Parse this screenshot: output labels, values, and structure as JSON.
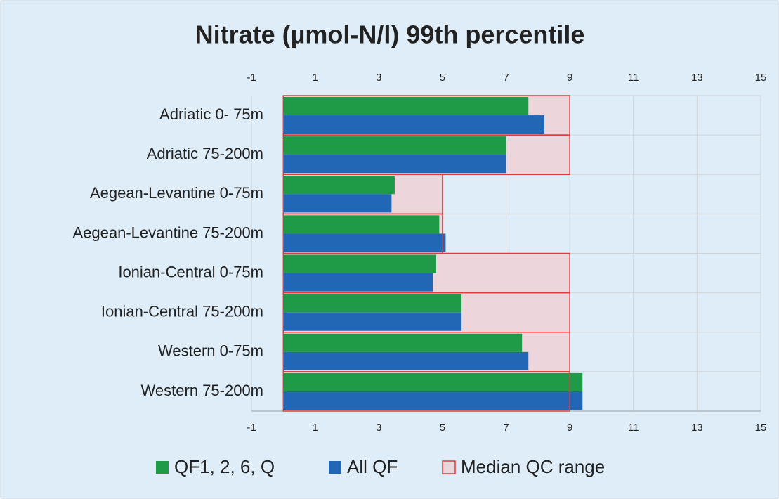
{
  "chart_data": {
    "type": "bar",
    "orientation": "horizontal",
    "title": "Nitrate (µmol-N/l) 99th percentile",
    "categories": [
      "Adriatic 0- 75m",
      "Adriatic 75-200m",
      "Aegean-Levantine 0-75m",
      "Aegean-Levantine 75-200m",
      "Ionian-Central 0-75m",
      "Ionian-Central 75-200m",
      "Western 0-75m",
      "Western 75-200m"
    ],
    "series": [
      {
        "name": "QF1, 2, 6, Q",
        "color": "#1f9a47",
        "values": [
          7.7,
          7.0,
          3.5,
          4.9,
          4.8,
          5.6,
          7.5,
          9.4
        ]
      },
      {
        "name": "All QF",
        "color": "#2266b6",
        "values": [
          8.2,
          7.0,
          3.4,
          5.1,
          4.7,
          5.6,
          7.7,
          9.4
        ]
      },
      {
        "name": "Median QC range",
        "color": "#ecd6dc",
        "edgecolor": "#e23b3b",
        "values": [
          9,
          9,
          5,
          5,
          9,
          9,
          9,
          9
        ]
      }
    ],
    "xlim": [
      -1,
      15
    ],
    "xticks": [
      -1,
      1,
      3,
      5,
      7,
      9,
      11,
      13,
      15
    ],
    "grid": true,
    "legend": "bottom"
  }
}
